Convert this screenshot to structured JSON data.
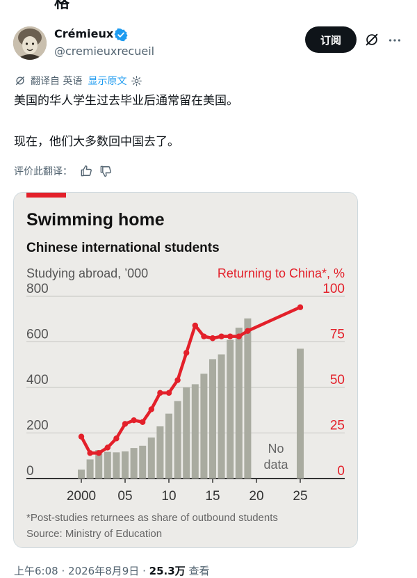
{
  "post": {
    "top_fragment": "格",
    "author_name": "Crémieux",
    "handle": "@cremieuxrecueil",
    "subscribe_label": "订阅",
    "translation": {
      "label": "翻译自 英语",
      "show_original": "显示原文"
    },
    "text_line1": "美国的华人学生过去毕业后通常留在美国。",
    "text_line2": "现在，他们大多数回中国去了。",
    "rate_label": "评价此翻译：",
    "time": "上午6:08",
    "date": "2026年8月9日",
    "views_count": "25.3万",
    "views_label": "查看",
    "separator": "·"
  },
  "chart_data": {
    "type": "bar",
    "title": "Swimming home",
    "subtitle": "Chinese international students",
    "left_axis_label": "Studying abroad, ’000",
    "right_axis_label": "Returning to China*, %",
    "left_ticks": [
      "800",
      "600",
      "400",
      "200",
      "0"
    ],
    "right_ticks": [
      "100",
      "75",
      "50",
      "25",
      "0"
    ],
    "x_ticks": [
      "2000",
      "05",
      "10",
      "15",
      "20",
      "25"
    ],
    "annotation": "No data",
    "annotation_line1": "No",
    "annotation_line2": "data",
    "footnote": "*Post-studies returnees as share of outbound students",
    "source": "Source: Ministry of Education",
    "ylim_left": [
      0,
      800
    ],
    "ylim_right": [
      0,
      100
    ],
    "bar_series": {
      "name": "Studying abroad, ’000",
      "x": [
        2000,
        2001,
        2002,
        2003,
        2004,
        2005,
        2006,
        2007,
        2008,
        2009,
        2010,
        2011,
        2012,
        2013,
        2014,
        2015,
        2016,
        2017,
        2018,
        2019,
        2025
      ],
      "values": [
        39,
        84,
        125,
        117,
        115,
        119,
        134,
        144,
        180,
        229,
        285,
        340,
        400,
        414,
        460,
        524,
        545,
        609,
        662,
        703,
        570
      ]
    },
    "line_series": {
      "name": "Returning to China*, %",
      "x": [
        2000,
        2001,
        2002,
        2003,
        2004,
        2005,
        2006,
        2007,
        2008,
        2009,
        2010,
        2011,
        2012,
        2013,
        2014,
        2015,
        2016,
        2017,
        2018,
        2019,
        2025
      ],
      "values": [
        23,
        14,
        14,
        17,
        22,
        30,
        32,
        31,
        38,
        47,
        47,
        54,
        69,
        84,
        78,
        77,
        78,
        78,
        78,
        81,
        94
      ]
    },
    "colors": {
      "bars": "#a9aba0",
      "line": "#e3202a",
      "accent_tag": "#e3202a",
      "background": "#ecebe8",
      "gridline": "#c4c4c0"
    }
  }
}
